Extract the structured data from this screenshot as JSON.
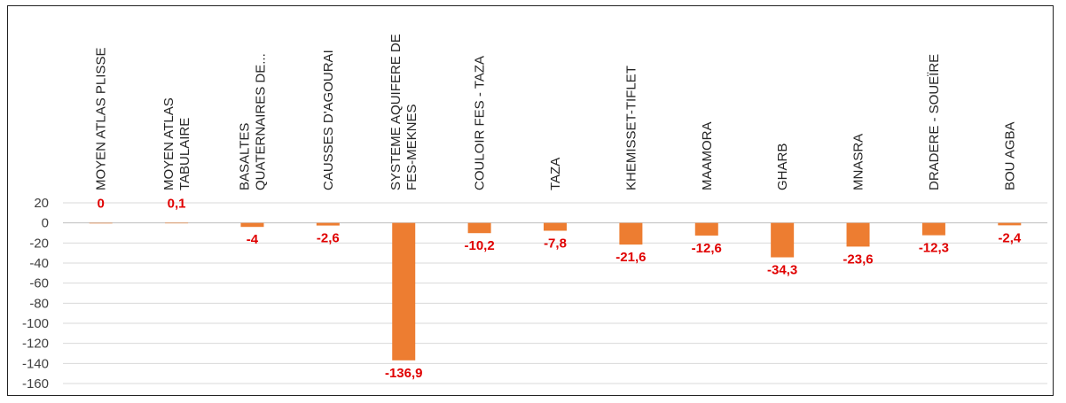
{
  "chart_data": {
    "type": "bar",
    "categories": [
      [
        "MOYEN ATLAS PLISSE"
      ],
      [
        "MOYEN ATLAS",
        "TABULAIRE"
      ],
      [
        "BASALTES",
        "QUATERNAIRES DE..."
      ],
      [
        "CAUSSES D'AGOURAI"
      ],
      [
        "SYSTEME AQUIFERE DE",
        "FES-MEKNES"
      ],
      [
        "COULOIR FES - TAZA"
      ],
      [
        "TAZA"
      ],
      [
        "KHEMISSET-TIFLET"
      ],
      [
        "MAAMORA"
      ],
      [
        "GHARB"
      ],
      [
        "MNASRA"
      ],
      [
        "DRADERE - SOUEÏRE"
      ],
      [
        "BOU AGBA"
      ]
    ],
    "values": [
      0,
      0.1,
      -4,
      -2.6,
      -136.9,
      -10.2,
      -7.8,
      -21.6,
      -12.6,
      -34.3,
      -23.6,
      -12.3,
      -2.4
    ],
    "data_labels": [
      "0",
      "0,1",
      "-4",
      "-2,6",
      "-136,9",
      "-10,2",
      "-7,8",
      "-21,6",
      "-12,6",
      "-34,3",
      "-23,6",
      "-12,3",
      "-2,4"
    ],
    "y_ticks": [
      20,
      0,
      -20,
      -40,
      -60,
      -80,
      -100,
      -120,
      -140,
      -160
    ],
    "ylim": [
      -160,
      20
    ],
    "grid": true,
    "legend": "none",
    "bar_color": "#ed7d31",
    "label_color": "#e00000"
  }
}
